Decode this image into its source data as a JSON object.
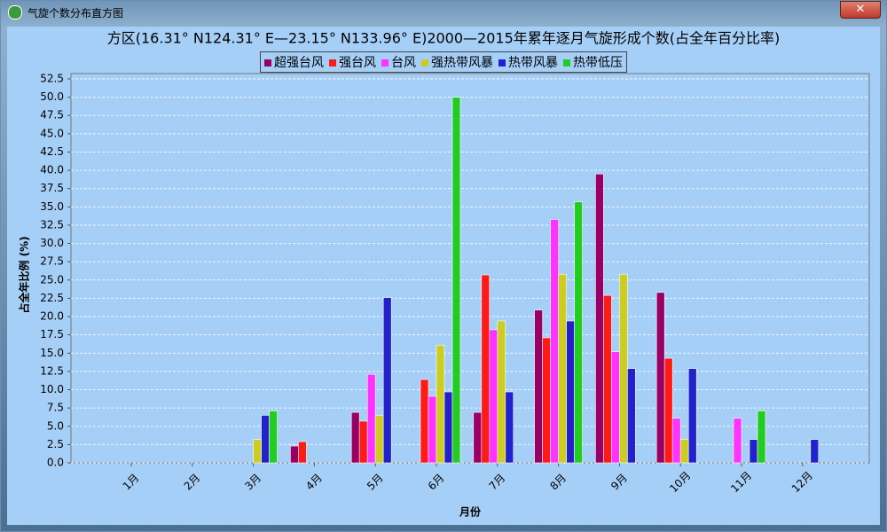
{
  "window_title": "气旋个数分布直方图",
  "chart_data": {
    "type": "bar",
    "title": "方区(16.31° N124.31° E—23.15° N133.96° E)2000—2015年累年逐月气旋形成个数(占全年百分比率)",
    "x_label": "月份",
    "y_label": "占全年比例 (%)",
    "categories": [
      "1月",
      "2月",
      "3月",
      "4月",
      "5月",
      "6月",
      "7月",
      "8月",
      "9月",
      "10月",
      "11月",
      "12月"
    ],
    "series": [
      {
        "name": "超强台风",
        "color": "#990066",
        "values": [
          0,
          0,
          0,
          2.3,
          6.9,
          0,
          6.9,
          20.9,
          39.5,
          23.3,
          0,
          0
        ]
      },
      {
        "name": "强台风",
        "color": "#ff1a1a",
        "values": [
          0,
          0,
          0,
          2.9,
          5.7,
          11.4,
          25.7,
          17.1,
          22.9,
          14.3,
          0,
          0
        ]
      },
      {
        "name": "台风",
        "color": "#ff33ff",
        "values": [
          0,
          0,
          0,
          0,
          12.1,
          9.1,
          18.2,
          33.3,
          15.2,
          6.1,
          6.1,
          0
        ]
      },
      {
        "name": "强热带风暴",
        "color": "#cccc22",
        "values": [
          0,
          0,
          3.2,
          0,
          6.5,
          16.1,
          19.4,
          25.8,
          25.8,
          3.2,
          0,
          0
        ]
      },
      {
        "name": "热带风暴",
        "color": "#2222cc",
        "values": [
          0,
          0,
          6.5,
          0,
          22.6,
          9.7,
          9.7,
          19.4,
          12.9,
          12.9,
          3.2,
          3.2
        ]
      },
      {
        "name": "热带低压",
        "color": "#22cc22",
        "values": [
          0,
          0,
          7.1,
          0,
          0,
          50.0,
          0,
          35.7,
          0,
          0,
          7.1,
          0
        ]
      }
    ],
    "ylim": [
      0,
      52.5
    ],
    "yticks": [
      {
        "value": 0,
        "label": "0.0"
      },
      2.5,
      {
        "value": 5,
        "label": "5.0"
      },
      7.5,
      {
        "value": 10,
        "label": "10.0"
      },
      12.5,
      {
        "value": 15,
        "label": "15.0"
      },
      17.5,
      {
        "value": 20,
        "label": "20.0"
      },
      22.5,
      {
        "value": 25,
        "label": "25.0"
      },
      27.5,
      {
        "value": 30,
        "label": "30.0"
      },
      32.5,
      {
        "value": 35,
        "label": "35.0"
      },
      37.5,
      {
        "value": 40,
        "label": "40.0"
      },
      42.5,
      {
        "value": 45,
        "label": "45.0"
      },
      47.5,
      {
        "value": 50,
        "label": "50.0"
      },
      52.5
    ],
    "grid": true,
    "legend": "top"
  }
}
